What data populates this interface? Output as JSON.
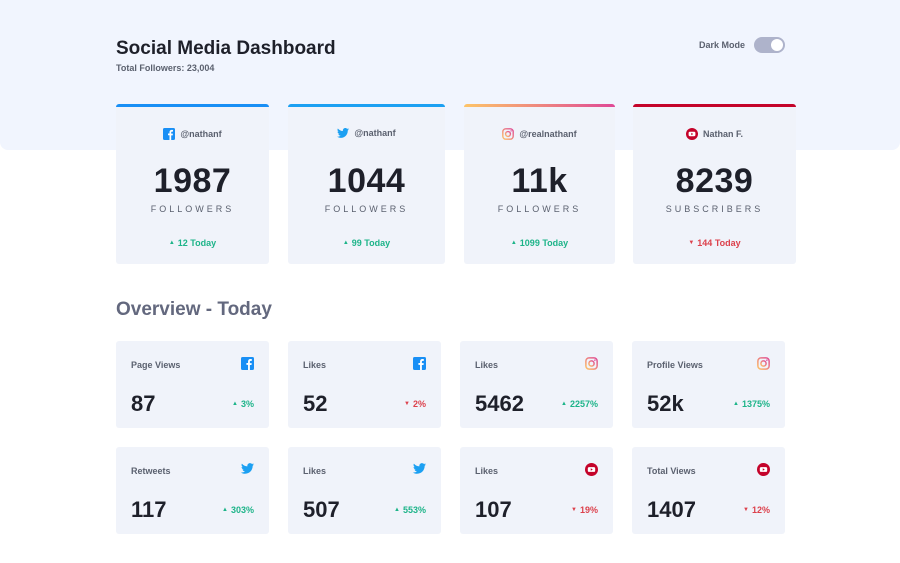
{
  "header": {
    "title": "Social Media Dashboard",
    "total_followers": "Total Followers: 23,004",
    "dark_mode_label": "Dark Mode"
  },
  "colors": {
    "up": "#1db489",
    "down": "#dc414c",
    "facebook": "#198ff5",
    "twitter": "#1ca0f2",
    "youtube": "#c4032a",
    "instagram_gradient": [
      "#fdc468",
      "#df4996"
    ]
  },
  "cards": [
    {
      "network": "facebook",
      "icon": "facebook-icon",
      "handle": "@nathanf",
      "count": "1987",
      "unit": "FOLLOWERS",
      "delta": "12 Today",
      "trend": "up"
    },
    {
      "network": "twitter",
      "icon": "twitter-icon",
      "handle": "@nathanf",
      "count": "1044",
      "unit": "FOLLOWERS",
      "delta": "99 Today",
      "trend": "up"
    },
    {
      "network": "instagram",
      "icon": "instagram-icon",
      "handle": "@realnathanf",
      "count": "11k",
      "unit": "FOLLOWERS",
      "delta": "1099 Today",
      "trend": "up"
    },
    {
      "network": "youtube",
      "icon": "youtube-icon",
      "handle": "Nathan F.",
      "count": "8239",
      "unit": "SUBSCRIBERS",
      "delta": "144 Today",
      "trend": "down"
    }
  ],
  "overview": {
    "title": "Overview - Today",
    "items": [
      {
        "label": "Page Views",
        "icon": "facebook-icon",
        "value": "87",
        "pct": "3%",
        "trend": "up"
      },
      {
        "label": "Likes",
        "icon": "facebook-icon",
        "value": "52",
        "pct": "2%",
        "trend": "down"
      },
      {
        "label": "Likes",
        "icon": "instagram-icon",
        "value": "5462",
        "pct": "2257%",
        "trend": "up"
      },
      {
        "label": "Profile Views",
        "icon": "instagram-icon",
        "value": "52k",
        "pct": "1375%",
        "trend": "up"
      },
      {
        "label": "Retweets",
        "icon": "twitter-icon",
        "value": "117",
        "pct": "303%",
        "trend": "up"
      },
      {
        "label": "Likes",
        "icon": "twitter-icon",
        "value": "507",
        "pct": "553%",
        "trend": "up"
      },
      {
        "label": "Likes",
        "icon": "youtube-icon",
        "value": "107",
        "pct": "19%",
        "trend": "down"
      },
      {
        "label": "Total Views",
        "icon": "youtube-icon",
        "value": "1407",
        "pct": "12%",
        "trend": "down"
      }
    ]
  }
}
